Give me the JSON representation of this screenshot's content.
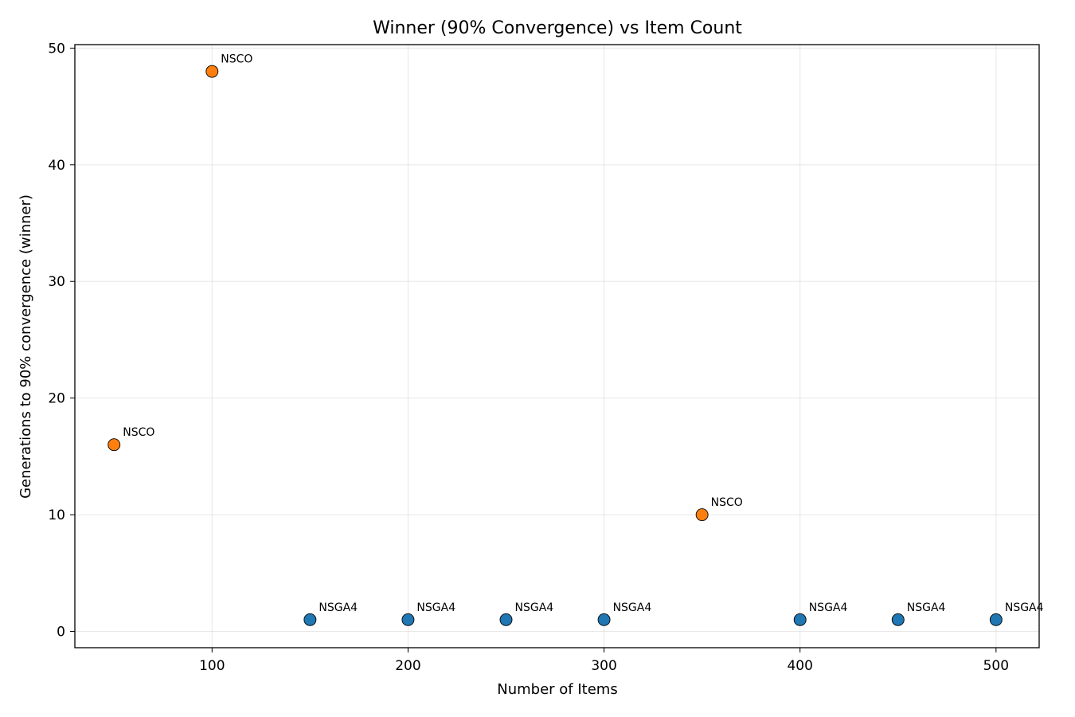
{
  "chart_data": {
    "type": "scatter",
    "title": "Winner (90% Convergence) vs Item Count",
    "xlabel": "Number of Items",
    "ylabel": "Generations to 90% convergence (winner)",
    "xlim": [
      30,
      522
    ],
    "ylim": [
      -1.4,
      50.3
    ],
    "xticks": [
      100,
      200,
      300,
      400,
      500
    ],
    "yticks": [
      0,
      10,
      20,
      30,
      40,
      50
    ],
    "grid": true,
    "colors": {
      "NSCO": "#ff7f0e",
      "NSGA4": "#1f77b4"
    },
    "points": [
      {
        "x": 50,
        "y": 16,
        "winner": "NSCO"
      },
      {
        "x": 100,
        "y": 48,
        "winner": "NSCO"
      },
      {
        "x": 150,
        "y": 1,
        "winner": "NSGA4"
      },
      {
        "x": 200,
        "y": 1,
        "winner": "NSGA4"
      },
      {
        "x": 250,
        "y": 1,
        "winner": "NSGA4"
      },
      {
        "x": 300,
        "y": 1,
        "winner": "NSGA4"
      },
      {
        "x": 350,
        "y": 10,
        "winner": "NSCO"
      },
      {
        "x": 400,
        "y": 1,
        "winner": "NSGA4"
      },
      {
        "x": 450,
        "y": 1,
        "winner": "NSGA4"
      },
      {
        "x": 500,
        "y": 1,
        "winner": "NSGA4"
      }
    ]
  }
}
